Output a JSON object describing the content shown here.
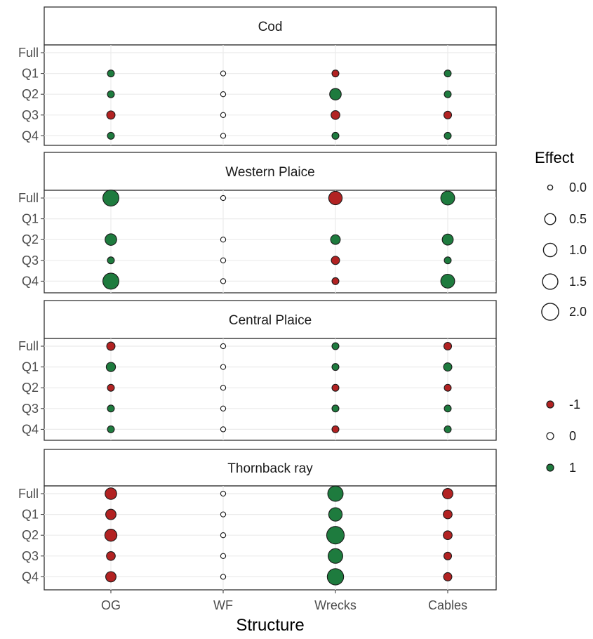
{
  "chart_data": {
    "type": "scatter",
    "xlabel": "Structure",
    "ylabel": "",
    "x_categories": [
      "OG",
      "WF",
      "Wrecks",
      "Cables"
    ],
    "y_categories": [
      "Full",
      "Q1",
      "Q2",
      "Q3",
      "Q4"
    ],
    "grid": true,
    "legend_position": "right",
    "colors": {
      "-1": "#b22222",
      "0": "#ffffff",
      "1": "#1e7b3e"
    },
    "panels": [
      {
        "title": "Cod",
        "points": [
          {
            "x": "OG",
            "y": "Q1",
            "effect": 0.05,
            "sign": 1
          },
          {
            "x": "WF",
            "y": "Q1",
            "effect": 0.0,
            "sign": 0
          },
          {
            "x": "Wrecks",
            "y": "Q1",
            "effect": 0.05,
            "sign": -1
          },
          {
            "x": "Cables",
            "y": "Q1",
            "effect": 0.05,
            "sign": 1
          },
          {
            "x": "OG",
            "y": "Q2",
            "effect": 0.05,
            "sign": 1
          },
          {
            "x": "WF",
            "y": "Q2",
            "effect": 0.0,
            "sign": 0
          },
          {
            "x": "Wrecks",
            "y": "Q2",
            "effect": 0.6,
            "sign": 1
          },
          {
            "x": "Cables",
            "y": "Q2",
            "effect": 0.05,
            "sign": 1
          },
          {
            "x": "OG",
            "y": "Q3",
            "effect": 0.15,
            "sign": -1
          },
          {
            "x": "WF",
            "y": "Q3",
            "effect": 0.0,
            "sign": 0
          },
          {
            "x": "Wrecks",
            "y": "Q3",
            "effect": 0.2,
            "sign": -1
          },
          {
            "x": "Cables",
            "y": "Q3",
            "effect": 0.1,
            "sign": -1
          },
          {
            "x": "OG",
            "y": "Q4",
            "effect": 0.05,
            "sign": 1
          },
          {
            "x": "WF",
            "y": "Q4",
            "effect": 0.0,
            "sign": 0
          },
          {
            "x": "Wrecks",
            "y": "Q4",
            "effect": 0.05,
            "sign": 1
          },
          {
            "x": "Cables",
            "y": "Q4",
            "effect": 0.05,
            "sign": 1
          }
        ]
      },
      {
        "title": "Western Plaice",
        "points": [
          {
            "x": "OG",
            "y": "Full",
            "effect": 1.7,
            "sign": 1
          },
          {
            "x": "WF",
            "y": "Full",
            "effect": 0.0,
            "sign": 0
          },
          {
            "x": "Wrecks",
            "y": "Full",
            "effect": 1.0,
            "sign": -1
          },
          {
            "x": "Cables",
            "y": "Full",
            "effect": 1.1,
            "sign": 1
          },
          {
            "x": "OG",
            "y": "Q2",
            "effect": 0.6,
            "sign": 1
          },
          {
            "x": "WF",
            "y": "Q2",
            "effect": 0.0,
            "sign": 0
          },
          {
            "x": "Wrecks",
            "y": "Q2",
            "effect": 0.3,
            "sign": 1
          },
          {
            "x": "Cables",
            "y": "Q2",
            "effect": 0.5,
            "sign": 1
          },
          {
            "x": "OG",
            "y": "Q3",
            "effect": 0.05,
            "sign": 1
          },
          {
            "x": "WF",
            "y": "Q3",
            "effect": 0.0,
            "sign": 0
          },
          {
            "x": "Wrecks",
            "y": "Q3",
            "effect": 0.15,
            "sign": -1
          },
          {
            "x": "Cables",
            "y": "Q3",
            "effect": 0.05,
            "sign": 1
          },
          {
            "x": "OG",
            "y": "Q4",
            "effect": 1.7,
            "sign": 1
          },
          {
            "x": "WF",
            "y": "Q4",
            "effect": 0.0,
            "sign": 0
          },
          {
            "x": "Wrecks",
            "y": "Q4",
            "effect": 0.05,
            "sign": -1
          },
          {
            "x": "Cables",
            "y": "Q4",
            "effect": 1.1,
            "sign": 1
          }
        ]
      },
      {
        "title": "Central Plaice",
        "points": [
          {
            "x": "OG",
            "y": "Full",
            "effect": 0.15,
            "sign": -1
          },
          {
            "x": "WF",
            "y": "Full",
            "effect": 0.0,
            "sign": 0
          },
          {
            "x": "Wrecks",
            "y": "Full",
            "effect": 0.05,
            "sign": 1
          },
          {
            "x": "Cables",
            "y": "Full",
            "effect": 0.1,
            "sign": -1
          },
          {
            "x": "OG",
            "y": "Q1",
            "effect": 0.25,
            "sign": 1
          },
          {
            "x": "WF",
            "y": "Q1",
            "effect": 0.0,
            "sign": 0
          },
          {
            "x": "Wrecks",
            "y": "Q1",
            "effect": 0.05,
            "sign": 1
          },
          {
            "x": "Cables",
            "y": "Q1",
            "effect": 0.15,
            "sign": 1
          },
          {
            "x": "OG",
            "y": "Q2",
            "effect": 0.05,
            "sign": -1
          },
          {
            "x": "WF",
            "y": "Q2",
            "effect": 0.0,
            "sign": 0
          },
          {
            "x": "Wrecks",
            "y": "Q2",
            "effect": 0.05,
            "sign": -1
          },
          {
            "x": "Cables",
            "y": "Q2",
            "effect": 0.05,
            "sign": -1
          },
          {
            "x": "OG",
            "y": "Q3",
            "effect": 0.05,
            "sign": 1
          },
          {
            "x": "WF",
            "y": "Q3",
            "effect": 0.0,
            "sign": 0
          },
          {
            "x": "Wrecks",
            "y": "Q3",
            "effect": 0.05,
            "sign": 1
          },
          {
            "x": "Cables",
            "y": "Q3",
            "effect": 0.05,
            "sign": 1
          },
          {
            "x": "OG",
            "y": "Q4",
            "effect": 0.05,
            "sign": 1
          },
          {
            "x": "WF",
            "y": "Q4",
            "effect": 0.0,
            "sign": 0
          },
          {
            "x": "Wrecks",
            "y": "Q4",
            "effect": 0.05,
            "sign": -1
          },
          {
            "x": "Cables",
            "y": "Q4",
            "effect": 0.05,
            "sign": 1
          }
        ]
      },
      {
        "title": "Thornback ray",
        "points": [
          {
            "x": "OG",
            "y": "Full",
            "effect": 0.6,
            "sign": -1
          },
          {
            "x": "WF",
            "y": "Full",
            "effect": 0.0,
            "sign": 0
          },
          {
            "x": "Wrecks",
            "y": "Full",
            "effect": 1.5,
            "sign": 1
          },
          {
            "x": "Cables",
            "y": "Full",
            "effect": 0.4,
            "sign": -1
          },
          {
            "x": "OG",
            "y": "Q1",
            "effect": 0.4,
            "sign": -1
          },
          {
            "x": "WF",
            "y": "Q1",
            "effect": 0.0,
            "sign": 0
          },
          {
            "x": "Wrecks",
            "y": "Q1",
            "effect": 1.0,
            "sign": 1
          },
          {
            "x": "Cables",
            "y": "Q1",
            "effect": 0.2,
            "sign": -1
          },
          {
            "x": "OG",
            "y": "Q2",
            "effect": 0.7,
            "sign": -1
          },
          {
            "x": "WF",
            "y": "Q2",
            "effect": 0.0,
            "sign": 0
          },
          {
            "x": "Wrecks",
            "y": "Q2",
            "effect": 2.2,
            "sign": 1
          },
          {
            "x": "Cables",
            "y": "Q2",
            "effect": 0.2,
            "sign": -1
          },
          {
            "x": "OG",
            "y": "Q3",
            "effect": 0.2,
            "sign": -1
          },
          {
            "x": "WF",
            "y": "Q3",
            "effect": 0.0,
            "sign": 0
          },
          {
            "x": "Wrecks",
            "y": "Q3",
            "effect": 1.3,
            "sign": 1
          },
          {
            "x": "Cables",
            "y": "Q3",
            "effect": 0.1,
            "sign": -1
          },
          {
            "x": "OG",
            "y": "Q4",
            "effect": 0.4,
            "sign": -1
          },
          {
            "x": "WF",
            "y": "Q4",
            "effect": 0.0,
            "sign": 0
          },
          {
            "x": "Wrecks",
            "y": "Q4",
            "effect": 1.8,
            "sign": 1
          },
          {
            "x": "Cables",
            "y": "Q4",
            "effect": 0.15,
            "sign": -1
          }
        ]
      }
    ],
    "size_legend": {
      "title": "Effect",
      "values": [
        0.0,
        0.5,
        1.0,
        1.5,
        2.0
      ],
      "labels": [
        "0.0",
        "0.5",
        "1.0",
        "1.5",
        "2.0"
      ]
    },
    "color_legend": {
      "values": [
        -1,
        0,
        1
      ],
      "labels": [
        "-1",
        "0",
        "1"
      ]
    }
  }
}
